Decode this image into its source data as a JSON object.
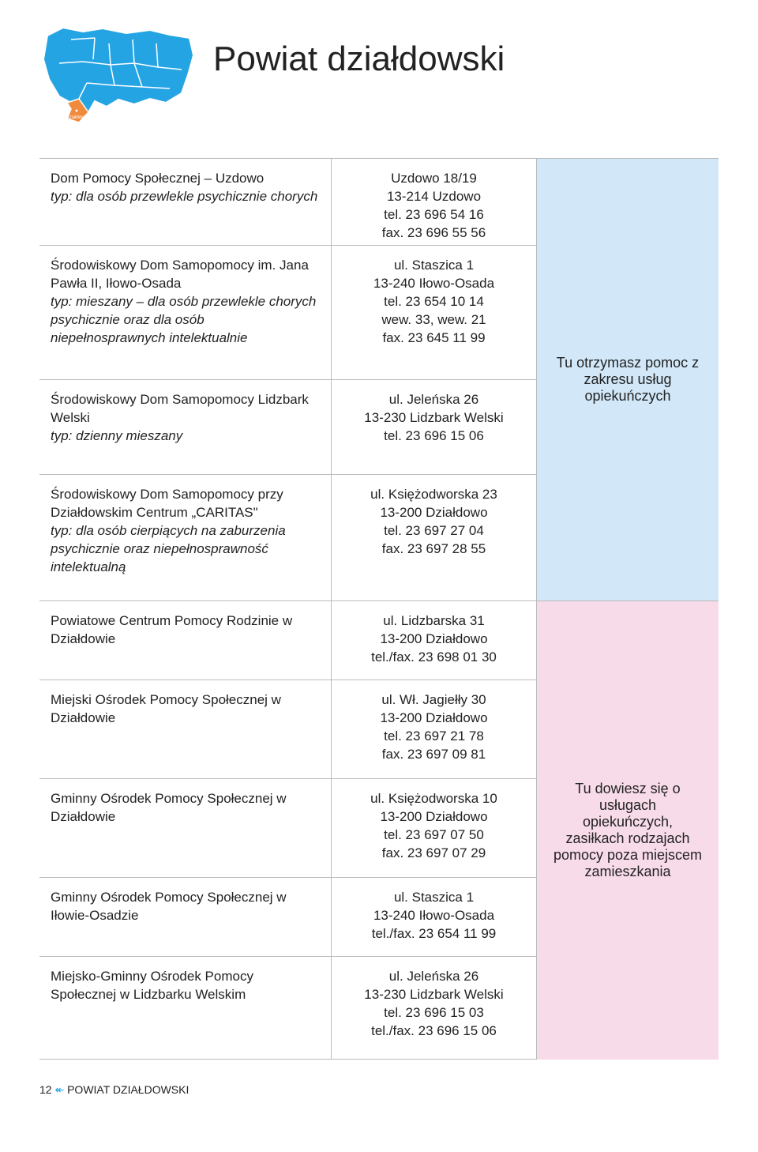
{
  "page_title": "Powiat działdowski",
  "map": {
    "main_color": "#25a4e4",
    "highlight_color": "#f08a3c",
    "label": "Działdowo",
    "label_color": "#ffffff"
  },
  "rows": [
    {
      "left_main": "Dom Pomocy Społecznej – Uzdowo",
      "left_sub": "typ: dla osób przewlekle psychicznie chorych",
      "mid": "Uzdowo 18/19\n13-214 Uzdowo\ntel. 23 696 54 16\nfax. 23 696 55 56"
    },
    {
      "left_main": "Środowiskowy Dom Samopomocy im. Jana Pawła II, Iłowo-Osada",
      "left_sub": "typ: mieszany – dla osób przewlekle chorych psychicznie oraz dla osób niepełnosprawnych intelektualnie",
      "mid": "ul. Staszica 1\n13-240 Iłowo-Osada\ntel. 23 654 10 14\nwew. 33, wew. 21\nfax. 23 645 11 99"
    },
    {
      "left_main": "Środowiskowy Dom Samopomocy Lidzbark Welski",
      "left_sub": "typ: dzienny mieszany",
      "mid": "ul. Jeleńska 26\n13-230 Lidzbark Welski\ntel. 23 696 15 06"
    },
    {
      "left_main": "Środowiskowy Dom Samopomocy przy Działdowskim Centrum „CARITAS\"",
      "left_sub": "typ: dla osób cierpiących na zaburzenia psychicznie oraz niepełnosprawność intelektualną",
      "mid": "ul. Księżodworska 23\n13-200 Działdowo\ntel. 23 697 27 04\nfax. 23 697 28 55"
    },
    {
      "left_main": "Powiatowe Centrum Pomocy Rodzinie w Działdowie",
      "left_sub": "",
      "mid": "ul. Lidzbarska 31\n13-200 Działdowo\ntel./fax. 23 698 01 30"
    },
    {
      "left_main": "Miejski Ośrodek Pomocy Społecznej w Działdowie",
      "left_sub": "",
      "mid": "ul. Wł. Jagiełły 30\n13-200 Działdowo\ntel. 23 697 21 78\nfax. 23 697 09 81"
    },
    {
      "left_main": "Gminny Ośrodek Pomocy Społecznej w Działdowie",
      "left_sub": "",
      "mid": "ul. Księżodworska 10\n13-200 Działdowo\ntel. 23 697 07 50\nfax. 23 697 07 29"
    },
    {
      "left_main": "Gminny Ośrodek Pomocy Społecznej w Iłowie-Osadzie",
      "left_sub": "",
      "mid": "ul. Staszica 1\n13-240 Iłowo-Osada\ntel./fax. 23 654 11 99"
    },
    {
      "left_main": "Miejsko-Gminny Ośrodek Pomocy Społecznej w Lidzbarku Welskim",
      "left_sub": "",
      "mid": "ul. Jeleńska 26\n13-230 Lidzbark Welski\ntel. 23 696 15 03\ntel./fax. 23 696 15 06"
    }
  ],
  "sidebar": {
    "top": "Tu otrzymasz pomoc z zakresu usług opiekuńczych",
    "bot": "Tu dowiesz się o usługach opiekuńczych, zasiłkach rodzajach pomocy poza miejscem zamieszkania"
  },
  "footer": {
    "page_num": "12",
    "arrow": "↞",
    "label": "POWIAT DZIAŁDOWSKI"
  },
  "colors": {
    "blue_bg": "#d2e8f9",
    "pink_bg": "#f8dbe9",
    "border": "#bbbbbb",
    "text": "#222222"
  }
}
